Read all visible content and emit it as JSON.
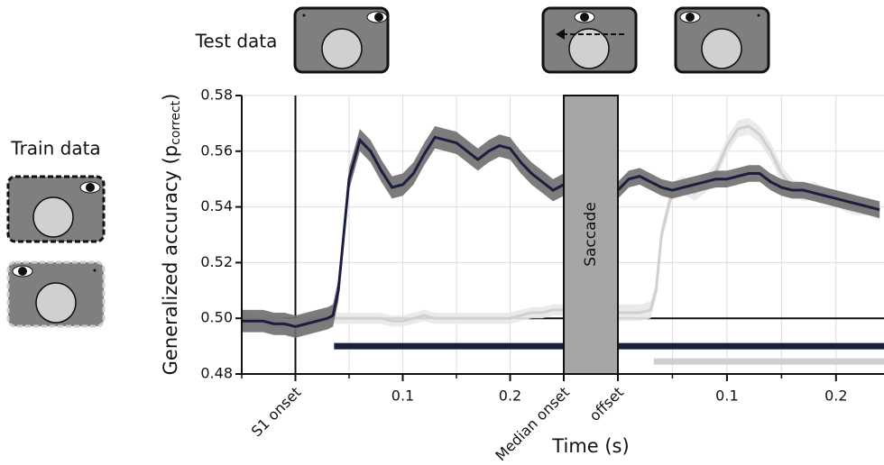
{
  "test_label": "Test data",
  "train_label": "Train data",
  "saccade_label": "Saccade",
  "chart_data": [
    {
      "type": "line",
      "ylabel": "Generalized accuracy (p",
      "ylabel_sub": "correct",
      "ylabel_end": ")",
      "xlabel": "Time (s)",
      "ylim": [
        0.48,
        0.58
      ],
      "yticks": [
        {
          "value": 0.48,
          "label": "0.48"
        },
        {
          "value": 0.5,
          "label": "0.50"
        },
        {
          "value": 0.52,
          "label": "0.52"
        },
        {
          "value": 0.54,
          "label": "0.54"
        },
        {
          "value": 0.56,
          "label": "0.56"
        },
        {
          "value": 0.58,
          "label": "0.58"
        }
      ],
      "xlim": [
        -0.05,
        0.25
      ],
      "xticks": [
        {
          "value": 0,
          "label": "S1 onset"
        },
        0.1,
        0.2,
        {
          "value": 0.25,
          "label": "Median onset"
        }
      ],
      "xminor": [
        -0.05,
        0.05,
        0.15
      ],
      "grid": true,
      "chance": 0.5,
      "onset_line": 0,
      "x": [
        -0.05,
        -0.04,
        -0.03,
        -0.02,
        -0.01,
        0,
        0.01,
        0.02,
        0.03,
        0.035,
        0.04,
        0.045,
        0.05,
        0.06,
        0.07,
        0.08,
        0.09,
        0.1,
        0.11,
        0.12,
        0.13,
        0.14,
        0.15,
        0.16,
        0.17,
        0.18,
        0.19,
        0.2,
        0.21,
        0.22,
        0.23,
        0.24,
        0.25
      ],
      "series": [
        {
          "color": "#1b1f3f",
          "band_color": "#6e6e6e",
          "error": 0.004,
          "values": [
            0.499,
            0.499,
            0.499,
            0.498,
            0.498,
            0.497,
            0.498,
            0.499,
            0.5,
            0.501,
            0.51,
            0.53,
            0.55,
            0.564,
            0.56,
            0.553,
            0.547,
            0.548,
            0.552,
            0.559,
            0.565,
            0.564,
            0.563,
            0.56,
            0.557,
            0.56,
            0.562,
            0.561,
            0.556,
            0.552,
            0.549,
            0.546,
            0.548
          ]
        },
        {
          "color": "#d0d0d0",
          "band_color": "#e8e8e8",
          "error": 0.002,
          "values": [
            0.501,
            0.5,
            0.499,
            0.499,
            0.498,
            0.498,
            0.499,
            0.5,
            0.5,
            0.5,
            0.5,
            0.5,
            0.5,
            0.5,
            0.5,
            0.5,
            0.499,
            0.499,
            0.5,
            0.501,
            0.5,
            0.5,
            0.5,
            0.5,
            0.5,
            0.5,
            0.5,
            0.5,
            0.501,
            0.502,
            0.502,
            0.503,
            0.503
          ]
        }
      ],
      "significance": [
        {
          "color": "#1b1f3f",
          "y": 0.49,
          "x": [
            0.036,
            0.25
          ]
        }
      ]
    },
    {
      "type": "line",
      "ylim": [
        0.48,
        0.58
      ],
      "xlim": [
        0,
        0.244
      ],
      "xticks": [
        {
          "value": 0,
          "label": "offset"
        },
        0.1,
        0.2
      ],
      "xminor": [
        0.05,
        0.15
      ],
      "grid": true,
      "chance": 0.5,
      "x": [
        0,
        0.01,
        0.02,
        0.03,
        0.035,
        0.04,
        0.05,
        0.06,
        0.07,
        0.08,
        0.09,
        0.1,
        0.11,
        0.12,
        0.13,
        0.14,
        0.15,
        0.16,
        0.17,
        0.18,
        0.19,
        0.2,
        0.21,
        0.22,
        0.23,
        0.24
      ],
      "series": [
        {
          "color": "#1b1f3f",
          "band_color": "#6e6e6e",
          "error": 0.003,
          "values": [
            0.546,
            0.55,
            0.551,
            0.549,
            0.548,
            0.547,
            0.546,
            0.547,
            0.548,
            0.549,
            0.55,
            0.55,
            0.551,
            0.552,
            0.552,
            0.549,
            0.547,
            0.546,
            0.546,
            0.545,
            0.544,
            0.543,
            0.542,
            0.541,
            0.54,
            0.539
          ]
        },
        {
          "color": "#d0d0d0",
          "band_color": "#e8e8e8",
          "error": 0.003,
          "values": [
            0.502,
            0.502,
            0.502,
            0.503,
            0.51,
            0.53,
            0.546,
            0.548,
            0.545,
            0.548,
            0.553,
            0.562,
            0.568,
            0.569,
            0.566,
            0.56,
            0.552,
            0.547,
            0.545,
            0.546,
            0.544,
            0.543,
            0.541,
            0.54,
            0.54,
            0.538
          ]
        }
      ],
      "significance": [
        {
          "color": "#1b1f3f",
          "y": 0.49,
          "x": [
            0,
            0.244
          ]
        },
        {
          "color": "#cfcfcf",
          "y": 0.4845,
          "x": [
            0.033,
            0.244
          ]
        }
      ]
    }
  ]
}
